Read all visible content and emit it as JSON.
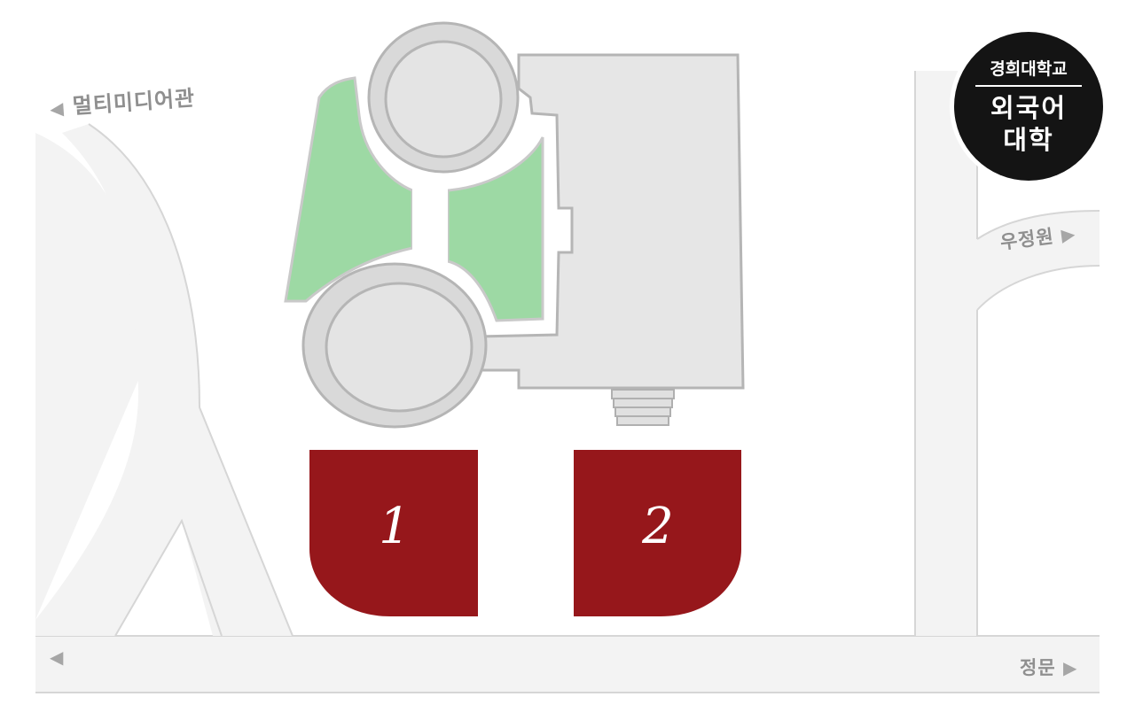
{
  "labels": {
    "multimedia_hall": "멀티미디어관",
    "woojeong_won": "우정원",
    "main_gate": "정문"
  },
  "badge": {
    "university": "경희대학교",
    "college": "외국어 대학"
  },
  "parking_lots": [
    {
      "number": "1"
    },
    {
      "number": "2"
    }
  ],
  "colors": {
    "road": "#f3f3f3",
    "road_edge": "#d6d6d6",
    "building": "#e6e6e6",
    "building_edge": "#b5b5b5",
    "garden": "#9dd9a4",
    "parking": "#96171b",
    "badge": "#141414"
  },
  "icons": {
    "west_arrow": "◀",
    "east_arrow": "▶"
  }
}
